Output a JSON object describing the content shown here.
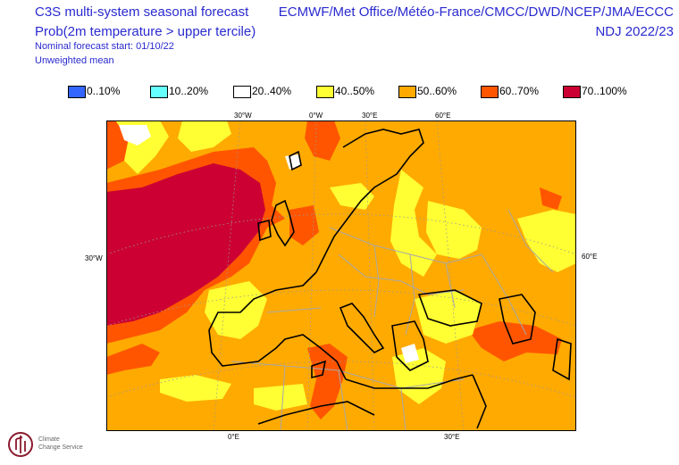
{
  "header": {
    "title": "C3S multi-system seasonal forecast",
    "subtitle": "Prob(2m temperature > upper tercile)",
    "start": "Nominal forecast start: 01/10/22",
    "mean": "Unweighted mean",
    "centres": "ECMWF/Met Office/Météo-France/CMCC/DWD/NCEP/JMA/ECCC",
    "season": "NDJ 2022/23"
  },
  "legend": [
    {
      "label": "0..10%",
      "color": "#3366ff"
    },
    {
      "label": "10..20%",
      "color": "#66ffff"
    },
    {
      "label": "20..40%",
      "color": "#ffffff"
    },
    {
      "label": "40..50%",
      "color": "#ffff33"
    },
    {
      "label": "50..60%",
      "color": "#ffaa00"
    },
    {
      "label": "60..70%",
      "color": "#ff5500"
    },
    {
      "label": "70..100%",
      "color": "#cc0033"
    }
  ],
  "ticks": {
    "top": [
      "30°W",
      "0°W",
      "30°E",
      "60°E"
    ],
    "left": "30°W",
    "right": "60°E",
    "bottom": [
      "0°E",
      "30°E"
    ]
  },
  "logo": {
    "line1": "Climate",
    "line2": "Change Service"
  }
}
